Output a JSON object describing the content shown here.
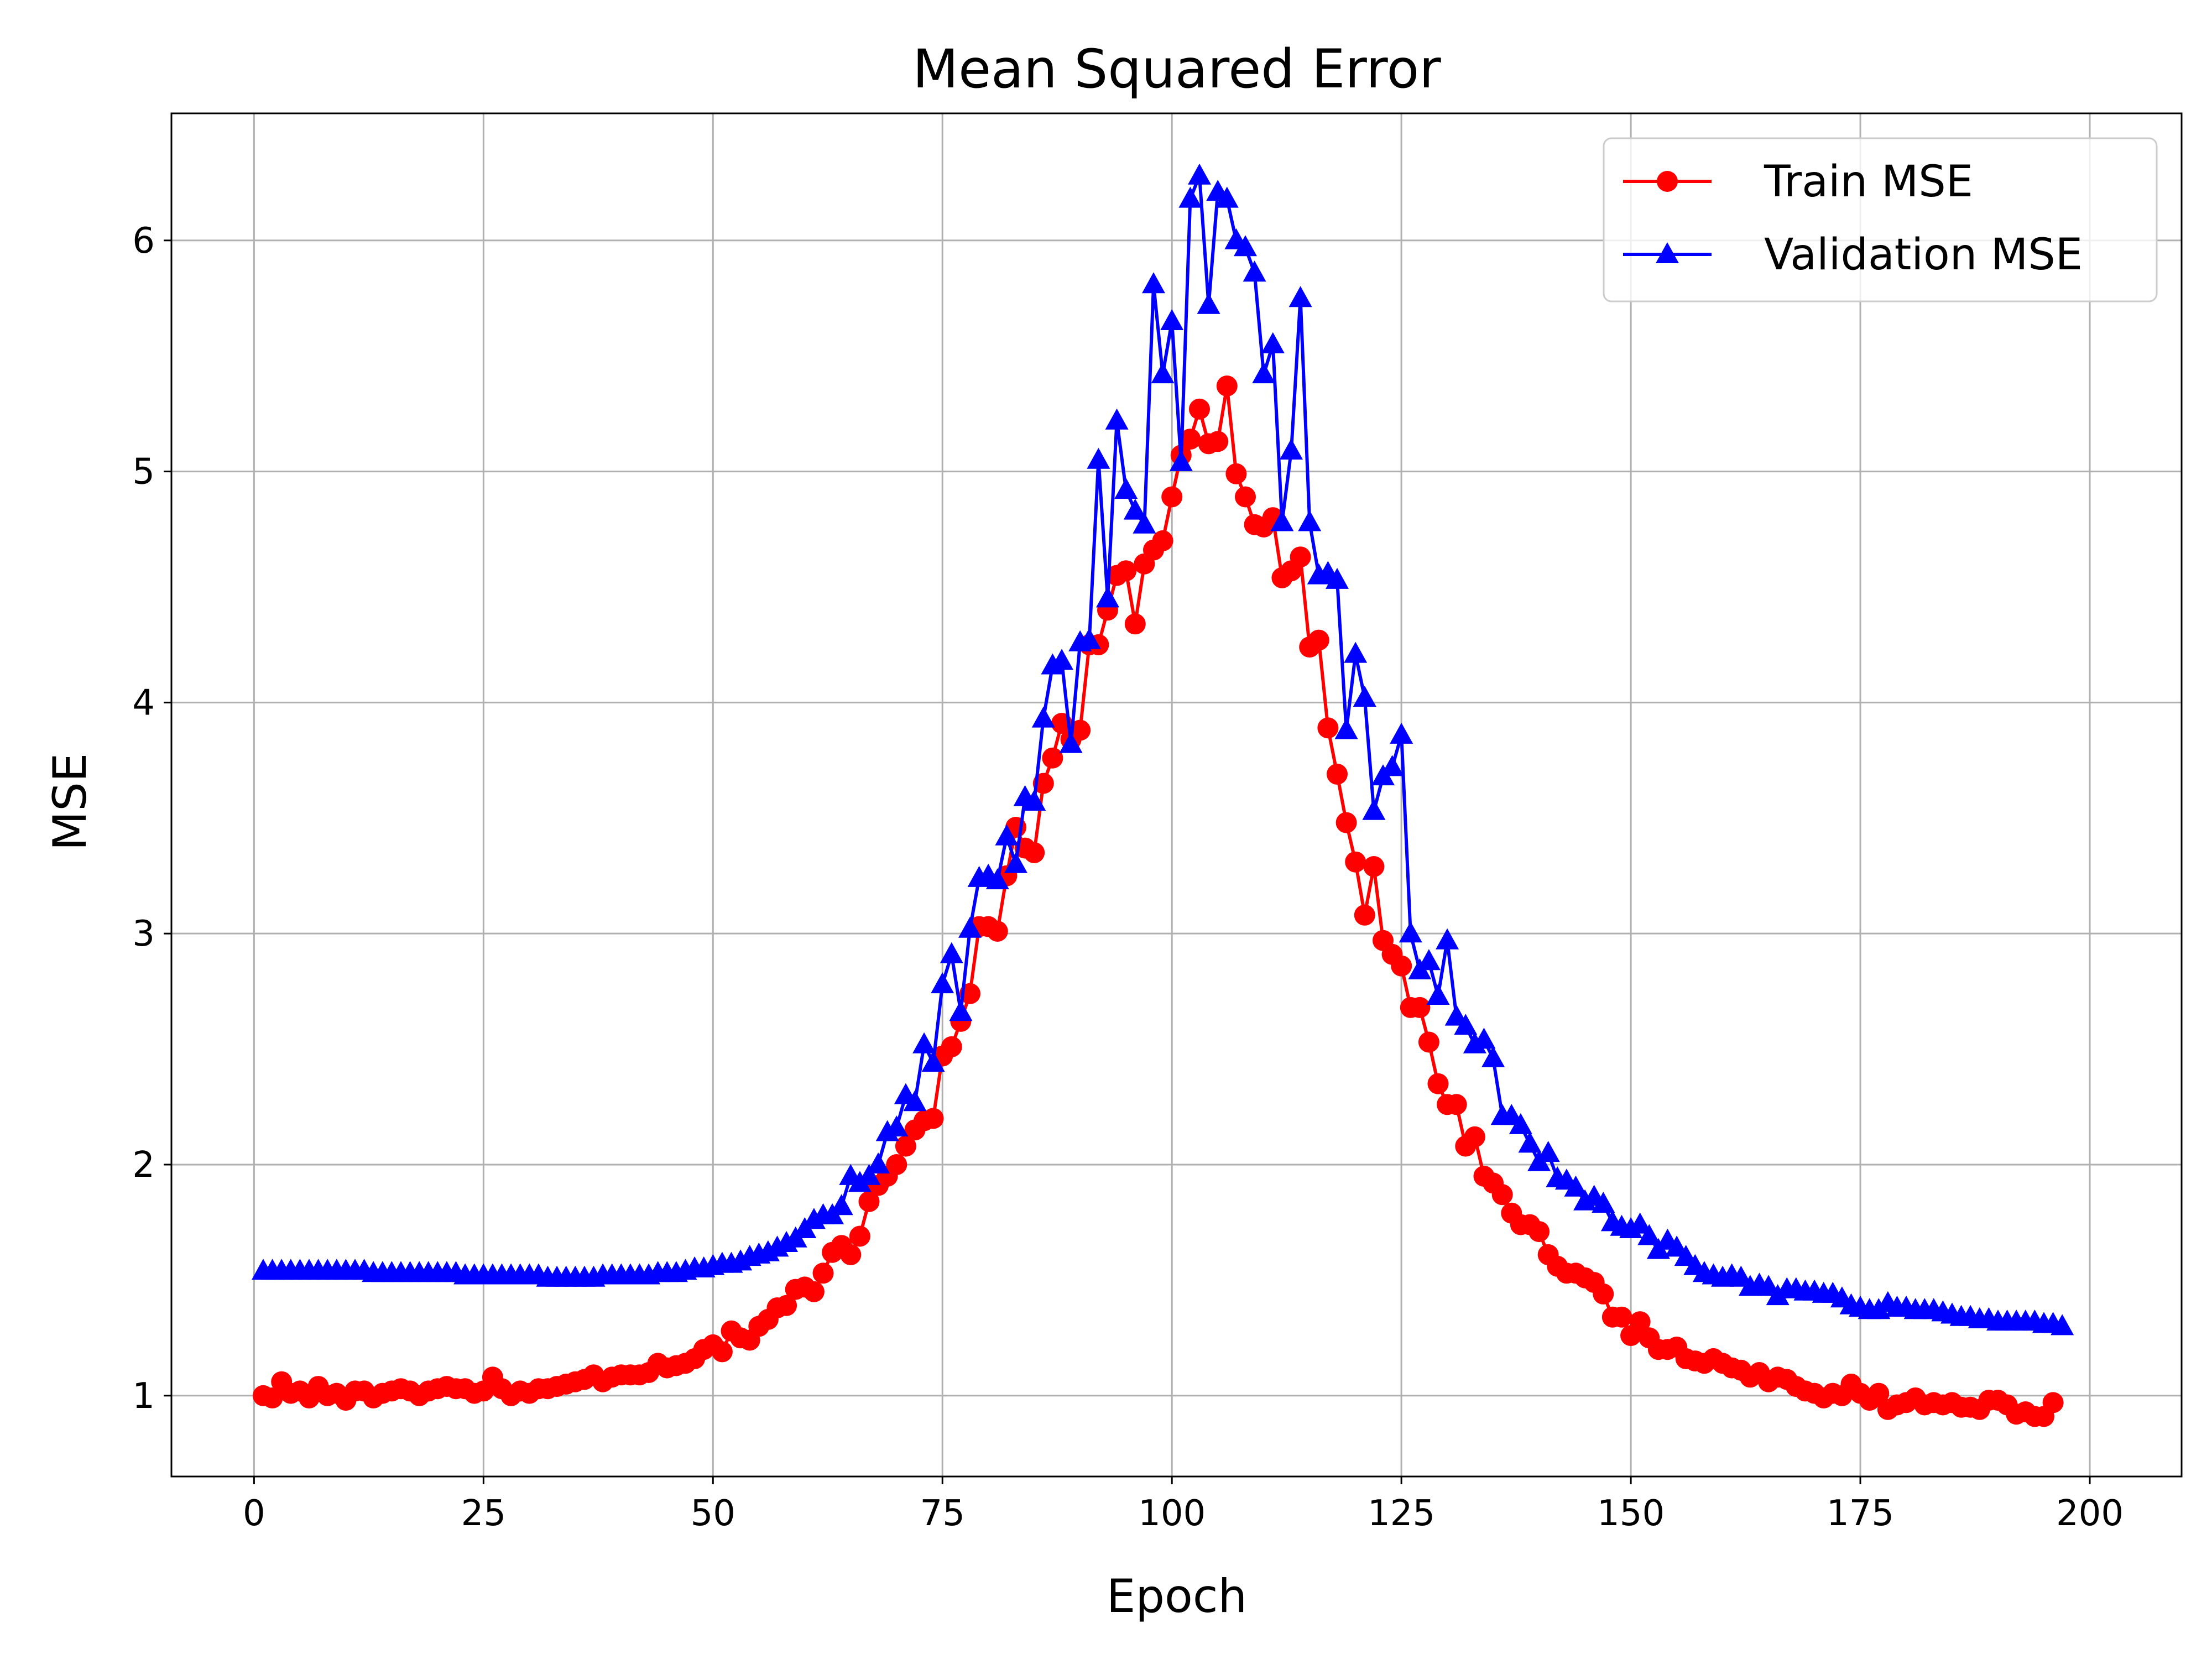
{
  "chart_data": {
    "type": "line",
    "title": "Mean Squared Error",
    "xlabel": "Epoch",
    "ylabel": "MSE",
    "xlim": [
      -9,
      210
    ],
    "ylim": [
      0.65,
      6.55
    ],
    "xticks": [
      0,
      25,
      50,
      75,
      100,
      125,
      150,
      175,
      200
    ],
    "yticks": [
      1,
      2,
      3,
      4,
      5,
      6
    ],
    "grid": true,
    "legend_position": "top-right",
    "series": [
      {
        "name": "Train MSE",
        "color": "#ff0000",
        "marker": "circle",
        "x_start": 1,
        "values": [
          1.0,
          0.99,
          1.06,
          1.01,
          1.02,
          0.99,
          1.04,
          1.0,
          1.01,
          0.98,
          1.02,
          1.02,
          0.99,
          1.01,
          1.02,
          1.03,
          1.02,
          1.0,
          1.02,
          1.03,
          1.04,
          1.03,
          1.03,
          1.01,
          1.02,
          1.08,
          1.03,
          1.0,
          1.02,
          1.01,
          1.03,
          1.03,
          1.04,
          1.05,
          1.06,
          1.07,
          1.09,
          1.06,
          1.08,
          1.09,
          1.09,
          1.09,
          1.1,
          1.14,
          1.12,
          1.13,
          1.14,
          1.16,
          1.2,
          1.22,
          1.19,
          1.28,
          1.25,
          1.24,
          1.3,
          1.33,
          1.38,
          1.39,
          1.46,
          1.47,
          1.45,
          1.53,
          1.62,
          1.65,
          1.61,
          1.69,
          1.84,
          1.91,
          1.95,
          2.0,
          2.08,
          2.15,
          2.19,
          2.2,
          2.47,
          2.51,
          2.62,
          2.74,
          3.03,
          3.03,
          3.01,
          3.25,
          3.46,
          3.37,
          3.35,
          3.65,
          3.76,
          3.91,
          3.84,
          3.88,
          4.25,
          4.25,
          4.4,
          4.55,
          4.57,
          4.34,
          4.6,
          4.66,
          4.7,
          4.89,
          5.07,
          5.14,
          5.27,
          5.12,
          5.13,
          5.37,
          4.99,
          4.89,
          4.77,
          4.76,
          4.8,
          4.54,
          4.57,
          4.63,
          4.24,
          4.27,
          3.89,
          3.69,
          3.48,
          3.31,
          3.08,
          3.29,
          2.97,
          2.91,
          2.86,
          2.68,
          2.68,
          2.53,
          2.35,
          2.26,
          2.26,
          2.08,
          2.12,
          1.95,
          1.92,
          1.87,
          1.79,
          1.74,
          1.74,
          1.71,
          1.61,
          1.56,
          1.53,
          1.53,
          1.51,
          1.49,
          1.44,
          1.34,
          1.34,
          1.26,
          1.32,
          1.25,
          1.2,
          1.2,
          1.21,
          1.16,
          1.15,
          1.14,
          1.16,
          1.14,
          1.12,
          1.11,
          1.08,
          1.1,
          1.06,
          1.08,
          1.07,
          1.04,
          1.02,
          1.01,
          0.99,
          1.01,
          1.0,
          1.05,
          1.01,
          0.98,
          1.01,
          0.94,
          0.96,
          0.97,
          0.99,
          0.96,
          0.97,
          0.96,
          0.97,
          0.95,
          0.95,
          0.94,
          0.98,
          0.98,
          0.96,
          0.92,
          0.93,
          0.91,
          0.91,
          0.97
        ]
      },
      {
        "name": "Validation MSE",
        "color": "#0000ff",
        "marker": "triangle",
        "x_start": 1,
        "values": [
          1.54,
          1.54,
          1.54,
          1.54,
          1.54,
          1.54,
          1.54,
          1.54,
          1.54,
          1.54,
          1.54,
          1.54,
          1.53,
          1.53,
          1.53,
          1.53,
          1.53,
          1.53,
          1.53,
          1.53,
          1.53,
          1.53,
          1.52,
          1.52,
          1.52,
          1.52,
          1.52,
          1.52,
          1.52,
          1.52,
          1.52,
          1.51,
          1.51,
          1.51,
          1.51,
          1.51,
          1.51,
          1.52,
          1.52,
          1.52,
          1.52,
          1.52,
          1.52,
          1.53,
          1.53,
          1.53,
          1.54,
          1.55,
          1.55,
          1.56,
          1.57,
          1.57,
          1.58,
          1.6,
          1.61,
          1.62,
          1.64,
          1.66,
          1.68,
          1.72,
          1.76,
          1.78,
          1.78,
          1.82,
          1.95,
          1.92,
          1.95,
          2.0,
          2.14,
          2.16,
          2.3,
          2.27,
          2.52,
          2.44,
          2.78,
          2.91,
          2.66,
          3.02,
          3.24,
          3.25,
          3.23,
          3.42,
          3.3,
          3.59,
          3.57,
          3.93,
          4.16,
          4.18,
          3.82,
          4.26,
          4.27,
          5.05,
          4.45,
          5.22,
          4.92,
          4.83,
          4.77,
          5.81,
          5.42,
          5.65,
          5.04,
          6.18,
          6.28,
          5.72,
          6.21,
          6.18,
          6.0,
          5.97,
          5.86,
          5.42,
          5.55,
          4.78,
          5.09,
          5.75,
          4.78,
          4.55,
          4.56,
          4.53,
          3.88,
          4.21,
          4.02,
          3.53,
          3.68,
          3.72,
          3.86,
          3.0,
          2.84,
          2.88,
          2.73,
          2.97,
          2.64,
          2.6,
          2.52,
          2.54,
          2.46,
          2.21,
          2.21,
          2.17,
          2.09,
          2.01,
          2.05,
          1.94,
          1.93,
          1.9,
          1.84,
          1.86,
          1.83,
          1.75,
          1.73,
          1.72,
          1.74,
          1.69,
          1.63,
          1.67,
          1.64,
          1.6,
          1.56,
          1.53,
          1.52,
          1.51,
          1.52,
          1.51,
          1.47,
          1.48,
          1.47,
          1.43,
          1.46,
          1.46,
          1.45,
          1.45,
          1.44,
          1.44,
          1.42,
          1.39,
          1.38,
          1.37,
          1.37,
          1.4,
          1.38,
          1.38,
          1.37,
          1.37,
          1.37,
          1.36,
          1.35,
          1.34,
          1.34,
          1.33,
          1.33,
          1.32,
          1.32,
          1.32,
          1.32,
          1.32,
          1.31,
          1.31,
          1.3
        ]
      }
    ]
  }
}
